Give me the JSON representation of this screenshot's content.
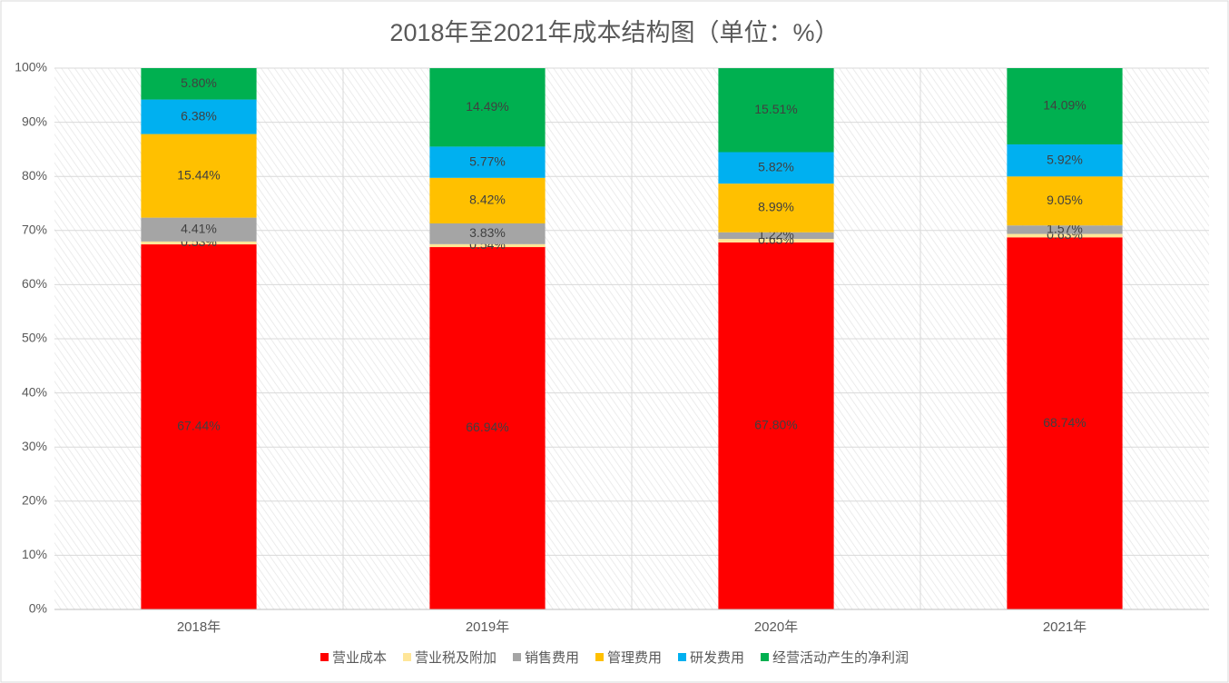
{
  "chart_data": {
    "type": "stacked_bar_100",
    "title": "2018年至2021年成本结构图（单位：%）",
    "categories": [
      "2018年",
      "2019年",
      "2020年",
      "2021年"
    ],
    "series": [
      {
        "name": "营业成本",
        "color": "#ff0000",
        "values": [
          67.44,
          66.94,
          67.8,
          68.74
        ],
        "value_labels": [
          "67.44%",
          "66.94%",
          "67.80%",
          "68.74%"
        ]
      },
      {
        "name": "营业税及附加",
        "color": "#ffe699",
        "values": [
          0.53,
          0.54,
          0.65,
          0.63
        ],
        "value_labels": [
          "0.53%",
          "0.54%",
          "0.65%",
          "0.63%"
        ]
      },
      {
        "name": "销售费用",
        "color": "#a5a5a5",
        "values": [
          4.41,
          3.83,
          1.22,
          1.57
        ],
        "value_labels": [
          "4.41%",
          "3.83%",
          "1.22%",
          "1.57%"
        ]
      },
      {
        "name": "管理费用",
        "color": "#ffc000",
        "values": [
          15.44,
          8.42,
          8.99,
          9.05
        ],
        "value_labels": [
          "15.44%",
          "8.42%",
          "8.99%",
          "9.05%"
        ]
      },
      {
        "name": "研发费用",
        "color": "#00b0f0",
        "values": [
          6.38,
          5.77,
          5.82,
          5.92
        ],
        "value_labels": [
          "6.38%",
          "5.77%",
          "5.82%",
          "5.92%"
        ]
      },
      {
        "name": "经营活动产生的净利润",
        "color": "#00b050",
        "values": [
          5.8,
          14.49,
          15.51,
          14.09
        ],
        "value_labels": [
          "5.80%",
          "14.49%",
          "15.51%",
          "14.09%"
        ]
      }
    ],
    "ylim": [
      0,
      100
    ],
    "yticks": [
      {
        "value": 0,
        "label": "0%"
      },
      {
        "value": 10,
        "label": "10%"
      },
      {
        "value": 20,
        "label": "20%"
      },
      {
        "value": 30,
        "label": "30%"
      },
      {
        "value": 40,
        "label": "40%"
      },
      {
        "value": 50,
        "label": "50%"
      },
      {
        "value": 60,
        "label": "60%"
      },
      {
        "value": 70,
        "label": "70%"
      },
      {
        "value": 80,
        "label": "80%"
      },
      {
        "value": 90,
        "label": "90%"
      },
      {
        "value": 100,
        "label": "100%"
      }
    ],
    "grid": true,
    "legend": "bottom"
  }
}
